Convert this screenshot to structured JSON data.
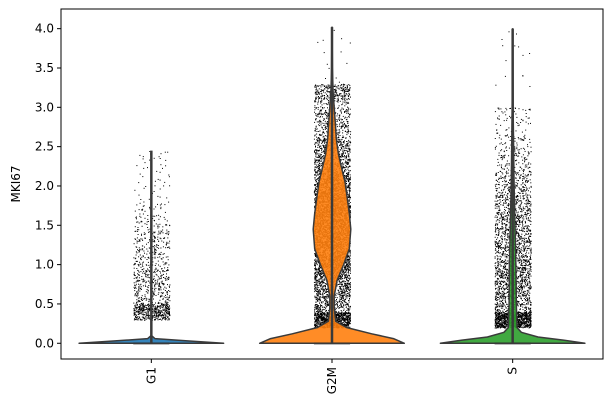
{
  "chart_data": {
    "type": "violin",
    "title": "",
    "xlabel": "",
    "ylabel": "MKI67",
    "categories": [
      "G1",
      "G2M",
      "S"
    ],
    "colors": [
      "#1f77b4",
      "#ff7f0e",
      "#2ca02c"
    ],
    "ylim": [
      -0.2,
      4.25
    ],
    "yticks": [
      "0.0",
      "0.5",
      "1.0",
      "1.5",
      "2.0",
      "2.5",
      "3.0",
      "3.5",
      "4.0"
    ],
    "grid": false,
    "legend": "none",
    "violins": [
      {
        "name": "G1",
        "max": 2.45,
        "points_range": [
          0.3,
          2.3
        ],
        "points_center": 0.7,
        "density_outline": [
          [
            0.0,
            1.0
          ],
          [
            0.03,
            0.5
          ],
          [
            0.06,
            0.05
          ],
          [
            0.1,
            0.0
          ]
        ]
      },
      {
        "name": "G2M",
        "max": 4.02,
        "points_range": [
          0.2,
          3.3
        ],
        "points_center": 1.45,
        "density_outline": [
          [
            0.0,
            1.0
          ],
          [
            0.06,
            0.85
          ],
          [
            0.12,
            0.55
          ],
          [
            0.2,
            0.2
          ],
          [
            0.28,
            0.05
          ],
          [
            0.45,
            0.03
          ],
          [
            0.6,
            0.03
          ],
          [
            0.8,
            0.07
          ],
          [
            1.0,
            0.16
          ],
          [
            1.2,
            0.24
          ],
          [
            1.45,
            0.26
          ],
          [
            1.65,
            0.24
          ],
          [
            1.85,
            0.21
          ],
          [
            2.05,
            0.18
          ],
          [
            2.2,
            0.14
          ],
          [
            2.4,
            0.09
          ],
          [
            2.6,
            0.06
          ],
          [
            2.8,
            0.045
          ],
          [
            3.0,
            0.03
          ],
          [
            3.2,
            0.015
          ],
          [
            3.5,
            0.006
          ],
          [
            3.8,
            0.003
          ],
          [
            4.02,
            0.0
          ]
        ]
      },
      {
        "name": "S",
        "max": 4.0,
        "points_range": [
          0.2,
          3.0
        ],
        "points_center": 0.95,
        "density_outline": [
          [
            0.0,
            1.0
          ],
          [
            0.04,
            0.7
          ],
          [
            0.08,
            0.35
          ],
          [
            0.14,
            0.12
          ],
          [
            0.2,
            0.06
          ],
          [
            0.5,
            0.05
          ],
          [
            1.0,
            0.045
          ],
          [
            2.0,
            0.02
          ],
          [
            3.0,
            0.006
          ],
          [
            4.0,
            0.0
          ]
        ]
      }
    ]
  }
}
